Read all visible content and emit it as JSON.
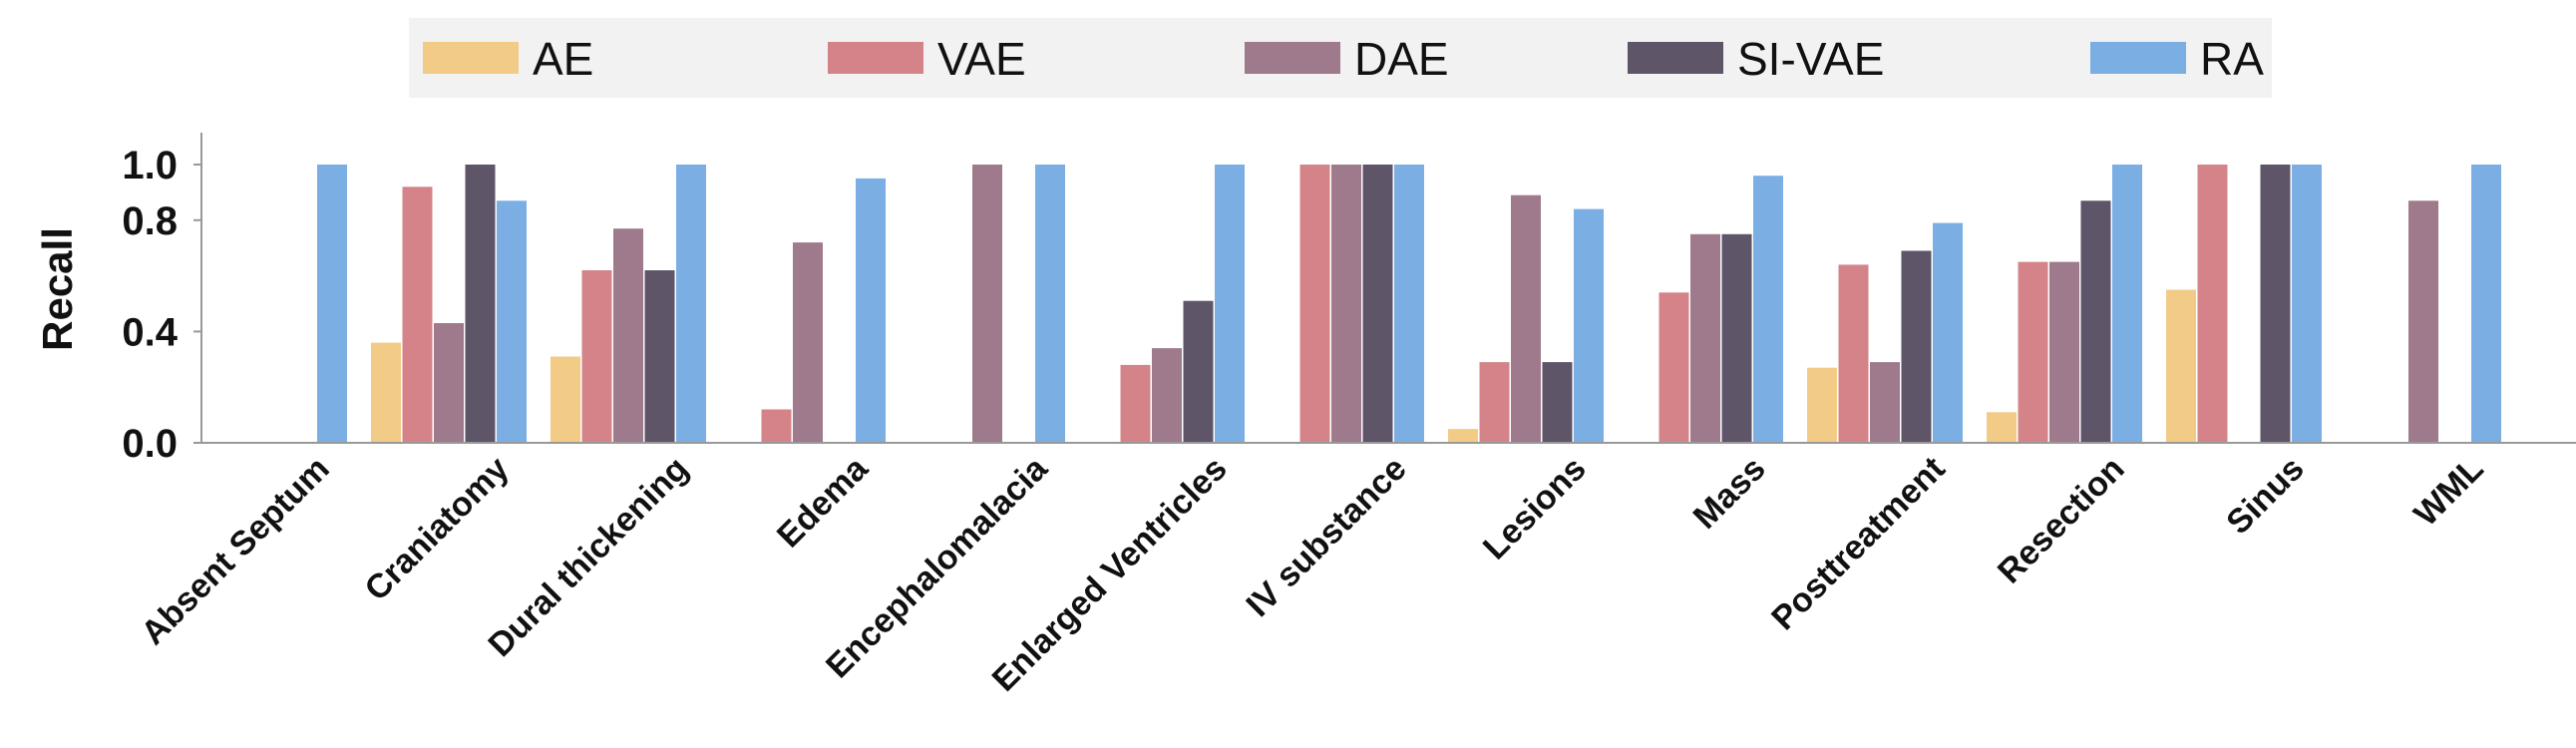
{
  "chart_data": {
    "type": "bar",
    "ylabel": "Recall",
    "xlabel": "",
    "ylim": [
      0,
      1.1
    ],
    "yticks": [
      {
        "value": 0.0,
        "label": "0.0"
      },
      {
        "value": 0.4,
        "label": "0.4"
      },
      {
        "value": 0.8,
        "label": "0.8"
      },
      {
        "value": 1.0,
        "label": "1.0"
      }
    ],
    "y_scale_note": "",
    "grid": false,
    "legend_position": "top",
    "categories": [
      "Absent Septum",
      "Craniatomy",
      "Dural thickening",
      "Edema",
      "Encephalomalacia",
      "Enlarged Ventricles",
      "IV substance",
      "Lesions",
      "Mass",
      "Posttreatment",
      "Resection",
      "Sinus",
      "WML"
    ],
    "series": [
      {
        "name": "AE",
        "color": "#F2CB87",
        "values": [
          0,
          0.36,
          0.31,
          0,
          0,
          0,
          0,
          0.05,
          0,
          0.27,
          0.11,
          0.55,
          0
        ]
      },
      {
        "name": "VAE",
        "color": "#D48488",
        "values": [
          0,
          0.92,
          0.62,
          0.12,
          0,
          0.28,
          1.0,
          0.29,
          0.54,
          0.64,
          0.65,
          1.0,
          0
        ]
      },
      {
        "name": "DAE",
        "color": "#9E7A8C",
        "values": [
          0,
          0.43,
          0.77,
          0.72,
          1.0,
          0.34,
          1.0,
          0.89,
          0.75,
          0.29,
          0.65,
          0,
          0.87
        ]
      },
      {
        "name": "SI-VAE",
        "color": "#5E5569",
        "values": [
          0,
          1.0,
          0.62,
          0,
          0,
          0.51,
          1.0,
          0.29,
          0.75,
          0.69,
          0.87,
          1.0,
          0
        ]
      },
      {
        "name": "RA",
        "color": "#7BAEE3",
        "values": [
          1.0,
          0.87,
          1.0,
          0.95,
          1.0,
          1.0,
          1.0,
          0.84,
          0.96,
          0.79,
          1.0,
          1.0,
          1.0
        ]
      }
    ]
  }
}
